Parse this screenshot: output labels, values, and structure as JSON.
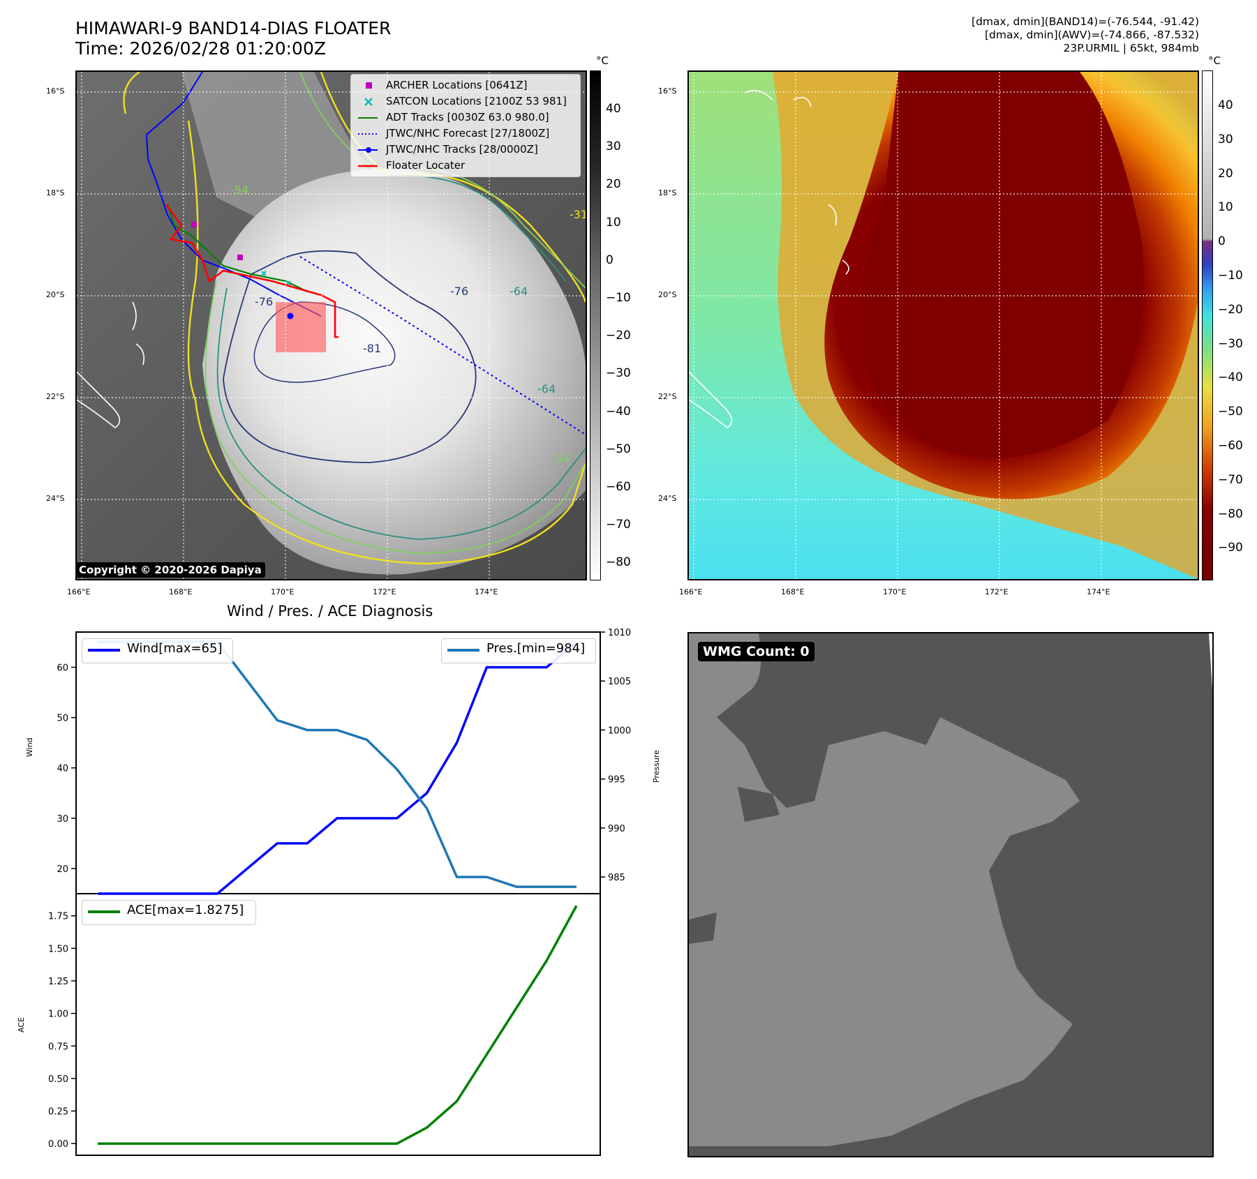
{
  "header": {
    "title_line1": "HIMAWARI-9 BAND14-DIAS FLOATER",
    "title_line2": "Time: 2026/02/28 01:20:00Z",
    "info_line1": "[dmax, dmin](BAND14)=(-76.544, -91.42)",
    "info_line2": "[dmax, dmin](AWV)=(-74.866, -87.532)",
    "info_line3": "23P.URMIL | 65kt, 984mb"
  },
  "map": {
    "lat_labels": [
      "16°S",
      "18°S",
      "20°S",
      "22°S",
      "24°S"
    ],
    "lon_labels": [
      "166°E",
      "168°E",
      "170°E",
      "172°E",
      "174°E"
    ],
    "copyright": "Copyright © 2020-2026 Dapiya",
    "contour_labels": [
      "-76",
      "-76",
      "-81",
      "-64",
      "-64",
      "-54",
      "-31",
      "-54"
    ],
    "legend": [
      {
        "label": "ARCHER Locations [0641Z]",
        "color": "#bf00bf"
      },
      {
        "label": "SATCON Locations [2100Z 53 981]",
        "color": "#00bfbf"
      },
      {
        "label": "ADT Tracks [0030Z 63.0 980.0]",
        "color": "#008000"
      },
      {
        "label": "JTWC/NHC Forecast [27/1800Z]",
        "color": "#0000ff"
      },
      {
        "label": "JTWC/NHC Tracks [28/0000Z]",
        "color": "#0000ff"
      },
      {
        "label": "Floater Locater",
        "color": "#ff0000"
      }
    ]
  },
  "colorbar_left": {
    "unit": "°C",
    "ticks": [
      "40",
      "30",
      "20",
      "10",
      "0",
      "−10",
      "−20",
      "−30",
      "−40",
      "−50",
      "−60",
      "−70",
      "−80"
    ]
  },
  "colorbar_right": {
    "unit": "°C",
    "ticks": [
      "40",
      "30",
      "20",
      "10",
      "0",
      "−10",
      "−20",
      "−30",
      "−40",
      "−50",
      "−60",
      "−70",
      "−80",
      "−90"
    ]
  },
  "wmg": {
    "label": "WMG Count: 0"
  },
  "chart_data": [
    {
      "type": "line",
      "title": "Wind / Pres. / ACE Diagnosis",
      "xlabel": "",
      "ylabel": "Wind",
      "y2label": "Pressure",
      "ylim": [
        15,
        67
      ],
      "y2lim": [
        983.3,
        1010
      ],
      "yticks": [
        "20",
        "30",
        "40",
        "50",
        "60"
      ],
      "y2ticks": [
        "985",
        "990",
        "995",
        "1000",
        "1005",
        "1010"
      ],
      "series": [
        {
          "name": "Wind[max=65]",
          "color": "#0000ff",
          "axis": "left",
          "values": [
            15,
            15,
            15,
            15,
            15,
            20,
            25,
            25,
            30,
            30,
            30,
            35,
            45,
            60,
            60,
            60,
            65
          ]
        },
        {
          "name": "Pres.[min=984]",
          "color": "#1f77b4",
          "axis": "right",
          "values": [
            1009,
            1009,
            1009,
            1009,
            1009,
            1005,
            1001,
            1000,
            1000,
            999,
            996,
            992,
            985,
            985,
            984,
            984,
            984
          ]
        }
      ]
    },
    {
      "type": "line",
      "ylabel": "ACE",
      "ylim": [
        -0.09,
        1.92
      ],
      "yticks": [
        "0.00",
        "0.25",
        "0.50",
        "0.75",
        "1.00",
        "1.25",
        "1.50",
        "1.75"
      ],
      "series": [
        {
          "name": "ACE[max=1.8275]",
          "color": "#008000",
          "values": [
            0,
            0,
            0,
            0,
            0,
            0,
            0,
            0,
            0,
            0,
            0,
            0.1225,
            0.325,
            0.685,
            1.045,
            1.405,
            1.8275
          ]
        }
      ]
    }
  ]
}
